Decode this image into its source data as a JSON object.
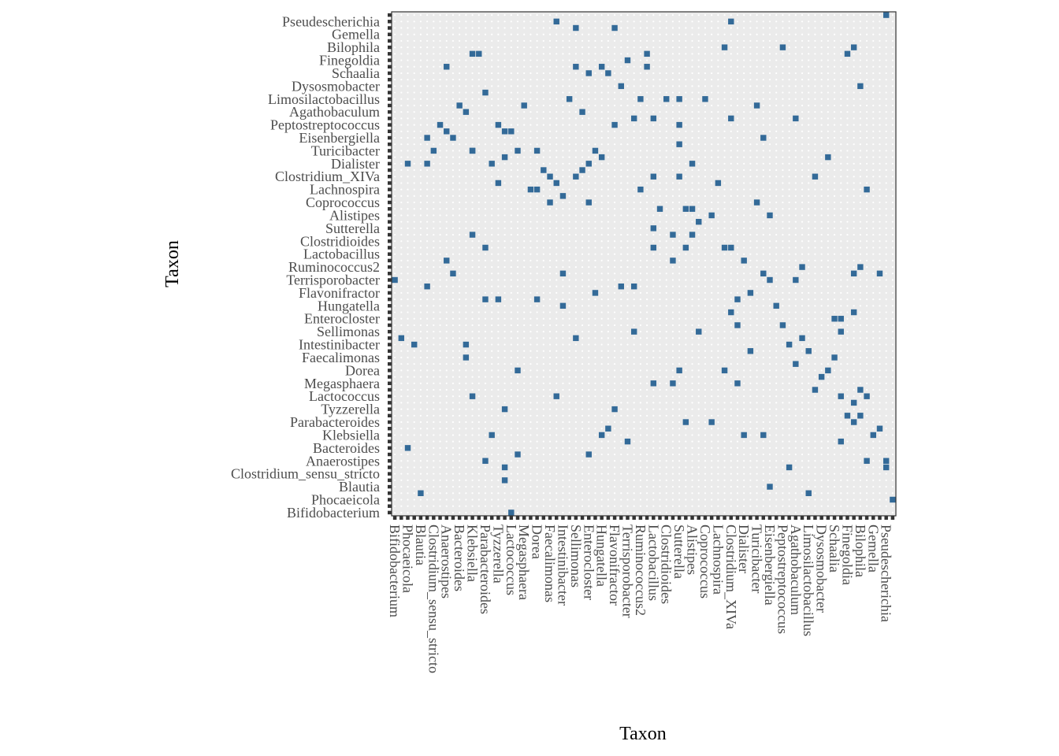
{
  "chart_data": {
    "type": "heatmap",
    "xlabel": "Taxon",
    "ylabel": "Taxon",
    "grid": true,
    "legend": "none",
    "colors": {
      "cell": "#336a98",
      "panel_background": "#ebebeb",
      "grid_dots": "#ffffff",
      "border": "#333333",
      "tick_label": "#4d4d4d",
      "axis_title": "#000000"
    },
    "categories": [
      "Bifidobacterium",
      "Phocaeicola",
      "Blautia",
      "Clostridium_sensu_stricto",
      "Anaerostipes",
      "Bacteroides",
      "Klebsiella",
      "Parabacteroides",
      "Tyzzerella",
      "Lactococcus",
      "Megasphaera",
      "Dorea",
      "Faecalimonas",
      "Intestinibacter",
      "Sellimonas",
      "Enterocloster",
      "Hungatella",
      "Flavonifractor",
      "Terrisporobacter",
      "Ruminococcus2",
      "Lactobacillus",
      "Clostridioides",
      "Sutterella",
      "Alistipes",
      "Coprococcus",
      "Lachnospira",
      "Clostridium_XIVa",
      "Dialister",
      "Turicibacter",
      "Eisenbergiella",
      "Peptostreptococcus",
      "Agathobaculum",
      "Limosilactobacillus",
      "Dysosmobacter",
      "Schaalia",
      "Finegoldia",
      "Bilophila",
      "Gemella",
      "Pseudescherichia"
    ],
    "grid_size": 78,
    "cells": [
      [
        0,
        36
      ],
      [
        1,
        27
      ],
      [
        2,
        10
      ],
      [
        3,
        26
      ],
      [
        4,
        3
      ],
      [
        5,
        58
      ],
      [
        6,
        56
      ],
      [
        7,
        60
      ],
      [
        8,
        59
      ],
      [
        9,
        58
      ],
      [
        10,
        63
      ],
      [
        11,
        62
      ],
      [
        12,
        56
      ],
      [
        13,
        71
      ],
      [
        14,
        65
      ],
      [
        15,
        54
      ],
      [
        16,
        60
      ],
      [
        17,
        59
      ],
      [
        18,
        59
      ],
      [
        19,
        56
      ],
      [
        20,
        63
      ],
      [
        21,
        50
      ],
      [
        22,
        50
      ],
      [
        23,
        53
      ],
      [
        24,
        52
      ],
      [
        25,
        51
      ],
      [
        26,
        49
      ],
      [
        27,
        64
      ],
      [
        28,
        52
      ],
      [
        29,
        53
      ],
      [
        30,
        54
      ],
      [
        31,
        56
      ],
      [
        32,
        55
      ],
      [
        33,
        68
      ],
      [
        34,
        60
      ],
      [
        35,
        66
      ],
      [
        36,
        70
      ],
      [
        37,
        61
      ],
      [
        38,
        64
      ],
      [
        39,
        69
      ],
      [
        40,
        41
      ],
      [
        41,
        47
      ],
      [
        42,
        64
      ],
      [
        43,
        39
      ],
      [
        44,
        52
      ],
      [
        45,
        47
      ],
      [
        46,
        47
      ],
      [
        47,
        45
      ],
      [
        48,
        64
      ],
      [
        49,
        46
      ],
      [
        50,
        51
      ],
      [
        51,
        41
      ],
      [
        52,
        41
      ],
      [
        53,
        33
      ],
      [
        54,
        39
      ],
      [
        55,
        34
      ],
      [
        56,
        63
      ],
      [
        57,
        58
      ],
      [
        58,
        36
      ],
      [
        59,
        32
      ],
      [
        60,
        29
      ],
      [
        61,
        26
      ],
      [
        62,
        23
      ],
      [
        63,
        27
      ],
      [
        64,
        25
      ],
      [
        65,
        19
      ],
      [
        66,
        21
      ],
      [
        67,
        22
      ],
      [
        68,
        24
      ],
      [
        69,
        18
      ],
      [
        70,
        15
      ],
      [
        71,
        17
      ],
      [
        72,
        19
      ],
      [
        73,
        8
      ],
      [
        74,
        12
      ],
      [
        75,
        13
      ],
      [
        76,
        7
      ],
      [
        77,
        2
      ],
      [
        18,
        0
      ],
      [
        17,
        5
      ],
      [
        14,
        8
      ],
      [
        19,
        9
      ],
      [
        36,
        11
      ],
      [
        49,
        14
      ],
      [
        40,
        20
      ],
      [
        47,
        28
      ],
      [
        52,
        31
      ],
      [
        69,
        30
      ],
      [
        72,
        38
      ],
      [
        75,
        37
      ],
      [
        37,
        35
      ],
      [
        11,
        26
      ],
      [
        43,
        43
      ],
      [
        28,
        27
      ],
      [
        37,
        28
      ],
      [
        25,
        18
      ],
      [
        55,
        25
      ],
      [
        57,
        37
      ],
      [
        53,
        20
      ],
      [
        22,
        33
      ],
      [
        12,
        43
      ],
      [
        57,
        12
      ],
      [
        61,
        7
      ],
      [
        58,
        4
      ],
      [
        69,
        11
      ],
      [
        76,
        8
      ],
      [
        70,
        71
      ],
      [
        60,
        72
      ],
      [
        34,
        75
      ],
      [
        17,
        55
      ],
      [
        31,
        34
      ],
      [
        8,
        69
      ],
      [
        25,
        76
      ],
      [
        15,
        12
      ],
      [
        30,
        48
      ],
      [
        38,
        50
      ],
      [
        62,
        61
      ],
      [
        39,
        71
      ],
      [
        45,
        14
      ],
      [
        32,
        69
      ],
      [
        63,
        38
      ],
      [
        24,
        48
      ],
      [
        51,
        22
      ],
      [
        29,
        62
      ],
      [
        72,
        15
      ],
      [
        46,
        43
      ],
      [
        14,
        33
      ],
      [
        46,
        54
      ],
      [
        71,
        31
      ],
      [
        30,
        68
      ],
      [
        56,
        48
      ],
      [
        40,
        44
      ],
      [
        30,
        9
      ],
      [
        40,
        52
      ],
      [
        65,
        52
      ],
      [
        9,
        37
      ],
      [
        5,
        54
      ],
      [
        52,
        61
      ],
      [
        52,
        76
      ],
      [
        45,
        41
      ],
      [
        44,
        57
      ],
      [
        71,
        37
      ],
      [
        26,
        37
      ],
      [
        26,
        32
      ],
      [
        14,
        41
      ],
      [
        19,
        22
      ],
      [
        22,
        56
      ],
      [
        53,
        29
      ],
      [
        73,
        18
      ],
      [
        11,
        24
      ],
      [
        35,
        35
      ],
      [
        73,
        50
      ],
      [
        12,
        18
      ],
      [
        16,
        51
      ],
      [
        72,
        66
      ],
      [
        28,
        75
      ],
      [
        71,
        72
      ],
      [
        69,
        28
      ],
      [
        17,
        16
      ],
      [
        44,
        22
      ],
      [
        40,
        61
      ],
      [
        68,
        30
      ],
      [
        62,
        36
      ],
      [
        12,
        56
      ],
      [
        71,
        14
      ],
      [
        51,
        72
      ],
      [
        64,
        3
      ],
      [
        8,
        39
      ],
      [
        34,
        16
      ],
      [
        44,
        64
      ],
      [
        2,
        54
      ],
      [
        54,
        12
      ],
      [
        58,
        46
      ],
      [
        76,
        77
      ],
      [
        12,
        71
      ],
      [
        16,
        33
      ],
      [
        33,
        13
      ],
      [
        17,
        7
      ],
      [
        44,
        60
      ],
      [
        32,
        12
      ],
      [
        28,
        69
      ],
      [
        5,
        35
      ],
      [
        43,
        20
      ],
      [
        67,
        55
      ]
    ]
  }
}
